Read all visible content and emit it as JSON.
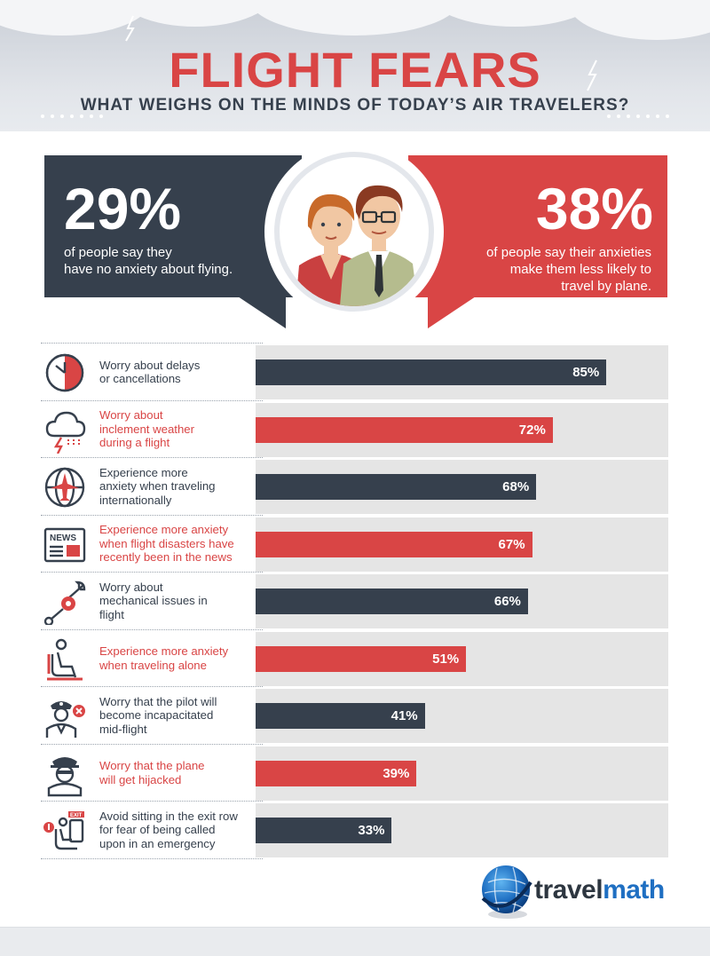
{
  "title": "FLIGHT FEARS",
  "subtitle": "WHAT WEIGHS ON THE MINDS OF TODAY’S AIR TRAVELERS?",
  "colors": {
    "dark": "#36404d",
    "red": "#d94545",
    "track": "#e5e5e5"
  },
  "stats": {
    "left": {
      "value": "29%",
      "text_line1": "of people say they",
      "text_line2": "have no anxiety about flying."
    },
    "right": {
      "value": "38%",
      "text_line1": "of people say their anxieties",
      "text_line2": "make them less likely to",
      "text_line3": "travel by plane."
    }
  },
  "chart_data": {
    "type": "bar",
    "orientation": "horizontal",
    "xlim": [
      0,
      100
    ],
    "unit": "%",
    "grid": false,
    "categories": [
      [
        "Worry about delays",
        "or cancellations"
      ],
      [
        "Worry about",
        "inclement weather",
        "during a flight"
      ],
      [
        "Experience more",
        "anxiety when traveling",
        "internationally"
      ],
      [
        "Experience more anxiety",
        "when flight disasters have",
        "recently been in the news"
      ],
      [
        "Worry about",
        "mechanical issues in",
        "flight"
      ],
      [
        "Experience more anxiety",
        "when traveling alone"
      ],
      [
        "Worry that the pilot will",
        "become incapacitated",
        "mid-flight"
      ],
      [
        "Worry that the plane",
        "will get hijacked"
      ],
      [
        "Avoid sitting in the exit row",
        "for fear of being called",
        "upon in an emergency"
      ]
    ],
    "values": [
      85,
      72,
      68,
      67,
      66,
      51,
      41,
      39,
      33
    ],
    "value_labels": [
      "85%",
      "72%",
      "68%",
      "67%",
      "66%",
      "51%",
      "41%",
      "39%",
      "33%"
    ],
    "bar_colors": [
      "#36404d",
      "#d94545",
      "#36404d",
      "#d94545",
      "#36404d",
      "#d94545",
      "#36404d",
      "#d94545",
      "#36404d"
    ],
    "icons": [
      "clock-icon",
      "storm-cloud-icon",
      "globe-plane-icon",
      "news-icon",
      "wrench-gear-icon",
      "seated-passenger-icon",
      "pilot-x-icon",
      "hijacker-icon",
      "exit-row-icon"
    ]
  },
  "icon_texts": {
    "news": "NEWS",
    "exit": "EXIT"
  },
  "logo": {
    "part1": "travel",
    "part2": "math"
  }
}
